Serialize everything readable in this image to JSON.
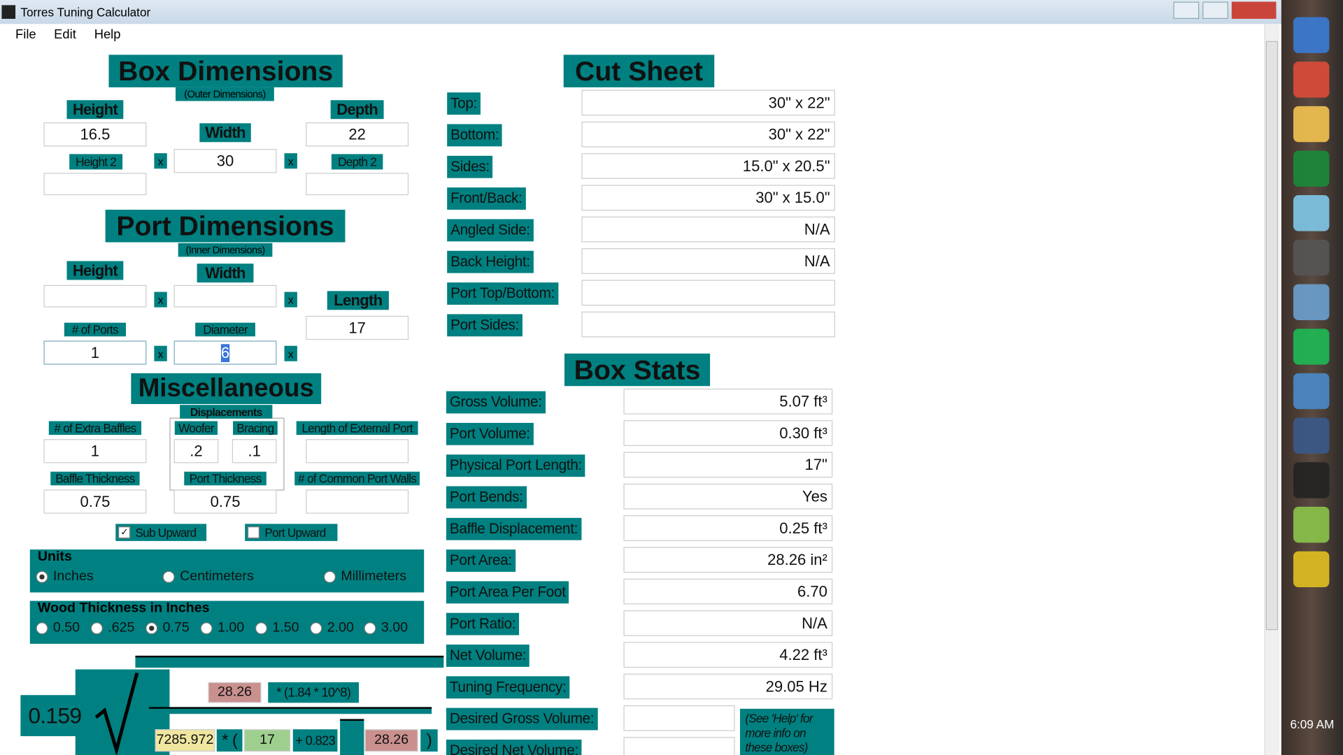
{
  "window": {
    "title": "Torres Tuning Calculator",
    "menu": [
      "File",
      "Edit",
      "Help"
    ]
  },
  "box_dimensions": {
    "title": "Box Dimensions",
    "subtitle": "(Outer Dimensions)",
    "height_label": "Height",
    "height": "16.5",
    "width_label": "Width",
    "width": "30",
    "depth_label": "Depth",
    "depth": "22",
    "height2_label": "Height 2",
    "depth2_label": "Depth 2",
    "times": "x"
  },
  "port_dimensions": {
    "title": "Port Dimensions",
    "subtitle": "(Inner Dimensions)",
    "height_label": "Height",
    "width_label": "Width",
    "length_label": "Length",
    "length": "17",
    "ports_label": "# of Ports",
    "ports": "1",
    "diameter_label": "Diameter",
    "diameter": "6"
  },
  "miscellaneous": {
    "title": "Miscellaneous",
    "displacements_label": "Displacements",
    "extra_baffles_label": "# of Extra Baffles",
    "extra_baffles": "1",
    "woofer_label": "Woofer",
    "woofer": ".2",
    "bracing_label": "Bracing",
    "bracing": ".1",
    "external_port_label": "Length of External Port",
    "baffle_thickness_label": "Baffle Thickness",
    "baffle_thickness": "0.75",
    "port_thickness_label": "Port Thickness",
    "port_thickness": "0.75",
    "common_walls_label": "# of Common Port Walls",
    "sub_upward": "Sub Upward",
    "port_upward": "Port Upward"
  },
  "units": {
    "title": "Units",
    "options": [
      "Inches",
      "Centimeters",
      "Millimeters"
    ],
    "selected": 0
  },
  "wood_thickness": {
    "title": "Wood Thickness in Inches",
    "options": [
      "0.50",
      ".625",
      "0.75",
      "1.00",
      "1.50",
      "2.00",
      "3.00"
    ],
    "selected": 2
  },
  "formula": {
    "constant": "0.159",
    "port_area_top": "28.26",
    "factor": "* (1.84 * 10^8)",
    "multiplier": "7285.972",
    "open": "* (",
    "length": "17",
    "plus": "+ 0.823",
    "port_area_bottom": "28.26",
    "close": ")"
  },
  "cut_sheet": {
    "title": "Cut Sheet",
    "rows": [
      {
        "label": "Top:",
        "value": "30\" x 22\""
      },
      {
        "label": "Bottom:",
        "value": "30\" x 22\""
      },
      {
        "label": "Sides:",
        "value": "15.0\" x 20.5\""
      },
      {
        "label": "Front/Back:",
        "value": "30\" x 15.0\""
      },
      {
        "label": "Angled Side:",
        "value": "N/A"
      },
      {
        "label": "Back Height:",
        "value": "N/A"
      },
      {
        "label": "Port Top/Bottom:"
      },
      {
        "label": "Port Sides:"
      }
    ]
  },
  "box_stats": {
    "title": "Box Stats",
    "rows": [
      {
        "label": "Gross Volume:",
        "value": "5.07 ft³"
      },
      {
        "label": "Port Volume:",
        "value": "0.30 ft³"
      },
      {
        "label": "Physical Port Length:",
        "value": "17\""
      },
      {
        "label": "Port Bends:",
        "value": "Yes"
      },
      {
        "label": "Baffle Displacement:",
        "value": "0.25 ft³"
      },
      {
        "label": "Port Area:",
        "value": "28.26 in²"
      },
      {
        "label": "Port Area Per Foot",
        "value": "6.70"
      },
      {
        "label": "Port Ratio:",
        "value": "N/A"
      },
      {
        "label": "Net Volume:",
        "value": "4.22 ft³"
      },
      {
        "label": "Tuning Frequency:",
        "value": "29.05 Hz"
      },
      {
        "label": "Desired Gross Volume:"
      },
      {
        "label": "Desired Net Volume:"
      }
    ],
    "note": "(See 'Help' for more info on these boxes)"
  },
  "taskbar": {
    "time": "6:09 AM"
  }
}
